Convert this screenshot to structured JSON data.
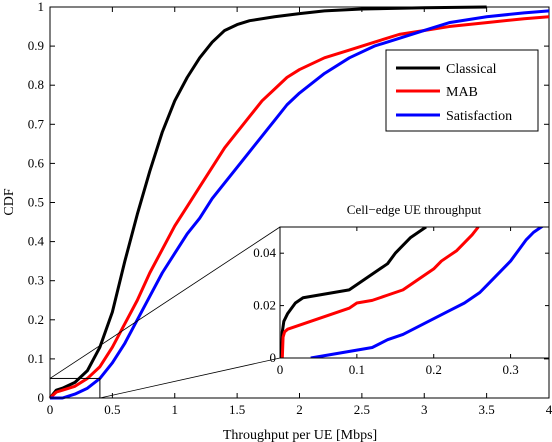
{
  "chart_data": {
    "type": "line",
    "title": "",
    "xlabel": "Throughput per  UE [Mbps]",
    "ylabel": "CDF",
    "xlim": [
      0,
      4
    ],
    "ylim": [
      0,
      1
    ],
    "xticks": [
      "0",
      "0.5",
      "1",
      "1.5",
      "2",
      "2.5",
      "3",
      "3.5",
      "4"
    ],
    "yticks": [
      "0",
      "0.1",
      "0.2",
      "0.3",
      "0.4",
      "0.5",
      "0.6",
      "0.7",
      "0.8",
      "0.9",
      "1"
    ],
    "grid": false,
    "legend_position": "top-right",
    "series": [
      {
        "name": "Classical",
        "color": "#000000",
        "x": [
          0,
          0.05,
          0.1,
          0.2,
          0.3,
          0.4,
          0.5,
          0.6,
          0.7,
          0.8,
          0.9,
          1.0,
          1.1,
          1.2,
          1.3,
          1.4,
          1.5,
          1.6,
          1.8,
          2.0,
          2.2,
          2.5,
          3.0,
          3.5
        ],
        "y": [
          0,
          0.02,
          0.025,
          0.04,
          0.07,
          0.13,
          0.22,
          0.35,
          0.47,
          0.58,
          0.68,
          0.76,
          0.82,
          0.87,
          0.91,
          0.94,
          0.955,
          0.965,
          0.975,
          0.983,
          0.99,
          0.995,
          0.998,
          1.0
        ]
      },
      {
        "name": "MAB",
        "color": "#ff0000",
        "x": [
          0,
          0.05,
          0.1,
          0.2,
          0.3,
          0.4,
          0.5,
          0.6,
          0.7,
          0.8,
          0.9,
          1.0,
          1.1,
          1.2,
          1.3,
          1.4,
          1.5,
          1.6,
          1.7,
          1.8,
          1.9,
          2.0,
          2.2,
          2.4,
          2.6,
          2.8,
          3.0,
          3.2,
          3.5,
          3.8,
          4.0
        ],
        "y": [
          0,
          0.015,
          0.02,
          0.03,
          0.05,
          0.08,
          0.13,
          0.19,
          0.25,
          0.32,
          0.38,
          0.44,
          0.49,
          0.54,
          0.59,
          0.64,
          0.68,
          0.72,
          0.76,
          0.79,
          0.82,
          0.84,
          0.87,
          0.89,
          0.91,
          0.93,
          0.94,
          0.95,
          0.96,
          0.97,
          0.975
        ]
      },
      {
        "name": "Satisfaction",
        "color": "#0000ff",
        "x": [
          0,
          0.1,
          0.15,
          0.2,
          0.3,
          0.4,
          0.5,
          0.6,
          0.7,
          0.8,
          0.9,
          1.0,
          1.1,
          1.2,
          1.3,
          1.4,
          1.5,
          1.6,
          1.7,
          1.8,
          1.9,
          2.0,
          2.2,
          2.4,
          2.6,
          2.8,
          3.0,
          3.2,
          3.5,
          3.8,
          4.0
        ],
        "y": [
          0,
          0.0,
          0.005,
          0.01,
          0.025,
          0.05,
          0.09,
          0.14,
          0.2,
          0.26,
          0.32,
          0.37,
          0.42,
          0.46,
          0.51,
          0.55,
          0.59,
          0.63,
          0.67,
          0.71,
          0.75,
          0.78,
          0.83,
          0.87,
          0.9,
          0.92,
          0.94,
          0.96,
          0.975,
          0.985,
          0.99
        ]
      }
    ],
    "inset": {
      "title": "Cell−edge UE throughput",
      "xlim": [
        0,
        0.35
      ],
      "ylim": [
        0,
        0.05
      ],
      "xticks": [
        "0",
        "0.1",
        "0.2",
        "0.3"
      ],
      "yticks": [
        "0",
        "0.02",
        "0.04"
      ],
      "zoom_region": {
        "x": [
          0,
          0.4
        ],
        "y": [
          0,
          0.05
        ]
      },
      "series": [
        {
          "name": "Classical",
          "color": "#000000",
          "x": [
            0.002,
            0.003,
            0.005,
            0.01,
            0.02,
            0.03,
            0.05,
            0.07,
            0.09,
            0.1,
            0.11,
            0.12,
            0.13,
            0.14,
            0.15,
            0.16,
            0.17,
            0.18,
            0.19
          ],
          "y": [
            0.0,
            0.01,
            0.014,
            0.017,
            0.021,
            0.023,
            0.024,
            0.025,
            0.026,
            0.028,
            0.03,
            0.032,
            0.034,
            0.036,
            0.04,
            0.043,
            0.046,
            0.048,
            0.05
          ]
        },
        {
          "name": "MAB",
          "color": "#ff0000",
          "x": [
            0.003,
            0.004,
            0.006,
            0.01,
            0.03,
            0.05,
            0.07,
            0.09,
            0.1,
            0.12,
            0.14,
            0.16,
            0.17,
            0.18,
            0.19,
            0.2,
            0.21,
            0.22,
            0.23,
            0.24,
            0.25,
            0.258
          ],
          "y": [
            0.0,
            0.008,
            0.01,
            0.011,
            0.013,
            0.015,
            0.017,
            0.019,
            0.021,
            0.022,
            0.024,
            0.026,
            0.028,
            0.03,
            0.032,
            0.034,
            0.037,
            0.039,
            0.041,
            0.044,
            0.047,
            0.05
          ]
        },
        {
          "name": "Satisfaction",
          "color": "#0000ff",
          "x": [
            0.04,
            0.06,
            0.08,
            0.1,
            0.12,
            0.14,
            0.16,
            0.18,
            0.2,
            0.22,
            0.24,
            0.26,
            0.27,
            0.28,
            0.29,
            0.3,
            0.31,
            0.32,
            0.33,
            0.34,
            0.35
          ],
          "y": [
            0.0,
            0.001,
            0.002,
            0.003,
            0.004,
            0.007,
            0.009,
            0.012,
            0.015,
            0.018,
            0.021,
            0.025,
            0.028,
            0.031,
            0.034,
            0.037,
            0.041,
            0.045,
            0.048,
            0.05,
            0.052
          ]
        }
      ]
    }
  }
}
